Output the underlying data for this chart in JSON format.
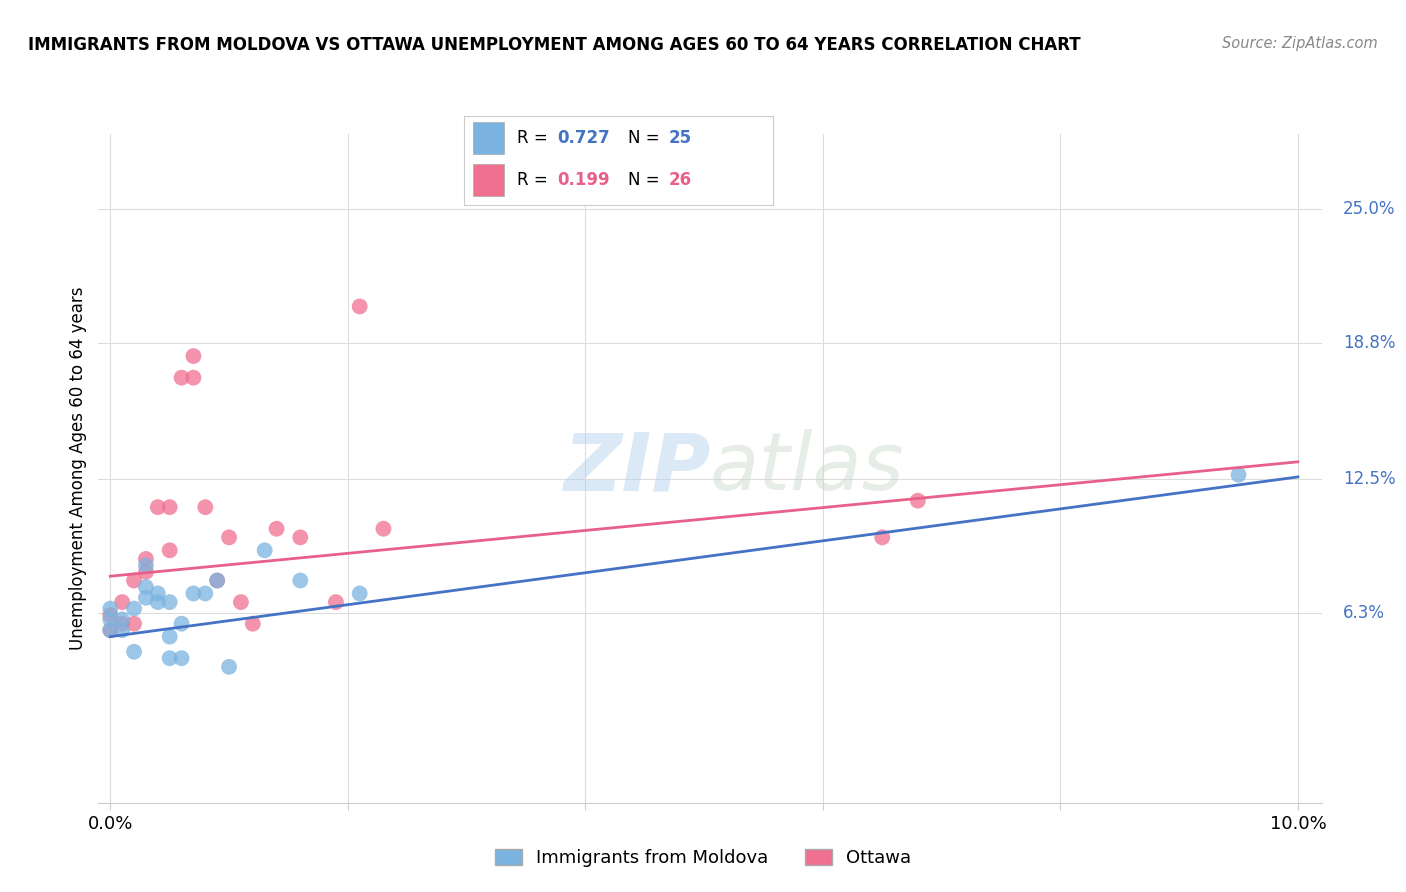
{
  "title": "IMMIGRANTS FROM MOLDOVA VS OTTAWA UNEMPLOYMENT AMONG AGES 60 TO 64 YEARS CORRELATION CHART",
  "source": "Source: ZipAtlas.com",
  "ylabel": "Unemployment Among Ages 60 to 64 years",
  "xlim": [
    -0.001,
    0.102
  ],
  "ylim": [
    -0.025,
    0.285
  ],
  "x_ticks": [
    0.0,
    0.02,
    0.04,
    0.06,
    0.08,
    0.1
  ],
  "x_tick_labels": [
    "0.0%",
    "",
    "",
    "",
    "",
    "10.0%"
  ],
  "y_tick_labels_right": [
    "6.3%",
    "12.5%",
    "18.8%",
    "25.0%"
  ],
  "y_tick_vals_right": [
    0.063,
    0.125,
    0.188,
    0.25
  ],
  "watermark_zip": "ZIP",
  "watermark_atlas": "atlas",
  "legend_r1_val": "0.727",
  "legend_n1_val": "25",
  "legend_r2_val": "0.199",
  "legend_n2_val": "26",
  "legend_label1": "Immigrants from Moldova",
  "legend_label2": "Ottawa",
  "blue_color": "#7ab3df",
  "pink_color": "#f07090",
  "blue_line_color": "#4472c4",
  "pink_line_color": "#e8608a",
  "blue_scatter_x": [
    0.0,
    0.0,
    0.0,
    0.001,
    0.001,
    0.002,
    0.002,
    0.003,
    0.003,
    0.003,
    0.004,
    0.004,
    0.005,
    0.005,
    0.005,
    0.006,
    0.006,
    0.007,
    0.008,
    0.009,
    0.01,
    0.013,
    0.016,
    0.021,
    0.095
  ],
  "blue_scatter_y": [
    0.055,
    0.06,
    0.065,
    0.055,
    0.06,
    0.045,
    0.065,
    0.07,
    0.075,
    0.085,
    0.068,
    0.072,
    0.042,
    0.052,
    0.068,
    0.058,
    0.042,
    0.072,
    0.072,
    0.078,
    0.038,
    0.092,
    0.078,
    0.072,
    0.127
  ],
  "pink_scatter_x": [
    0.0,
    0.0,
    0.001,
    0.001,
    0.002,
    0.002,
    0.003,
    0.003,
    0.004,
    0.005,
    0.005,
    0.006,
    0.007,
    0.007,
    0.008,
    0.009,
    0.01,
    0.011,
    0.012,
    0.014,
    0.016,
    0.019,
    0.021,
    0.023,
    0.065,
    0.068
  ],
  "pink_scatter_y": [
    0.055,
    0.062,
    0.058,
    0.068,
    0.058,
    0.078,
    0.088,
    0.082,
    0.112,
    0.112,
    0.092,
    0.172,
    0.172,
    0.182,
    0.112,
    0.078,
    0.098,
    0.068,
    0.058,
    0.102,
    0.098,
    0.068,
    0.205,
    0.102,
    0.098,
    0.115
  ],
  "blue_line_x": [
    0.0,
    0.1
  ],
  "blue_line_y": [
    0.052,
    0.126
  ],
  "pink_line_x": [
    0.0,
    0.1
  ],
  "pink_line_y": [
    0.08,
    0.133
  ],
  "background_color": "#ffffff",
  "grid_color": "#dcdcdc",
  "horiz_grid_vals": [
    0.063,
    0.125,
    0.188,
    0.25
  ]
}
